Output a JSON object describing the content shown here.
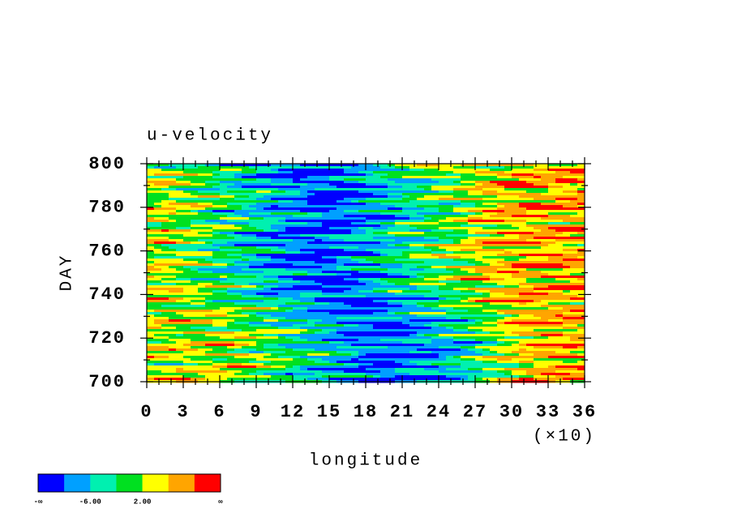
{
  "chart_data": {
    "type": "contour",
    "title": "u-velocity",
    "x_label": "longitude",
    "y_label": "DAY",
    "x_multiplier": "(×10)",
    "xlim": [
      0,
      36
    ],
    "xticks": [
      0,
      3,
      6,
      9,
      12,
      15,
      18,
      21,
      24,
      27,
      30,
      33,
      36
    ],
    "ylim": [
      700,
      800
    ],
    "yticks": [
      700,
      720,
      740,
      760,
      780,
      800
    ],
    "colorbar": {
      "colors": [
        "#0000ff",
        "#00a0ff",
        "#00f0b0",
        "#00e020",
        "#ffff00",
        "#ffa500",
        "#ff0000"
      ],
      "labels": [
        "-∞",
        {
          "value": -6,
          "label": "-6.00"
        },
        {
          "value": 2,
          "label": "2.00"
        },
        "∞"
      ]
    }
  }
}
